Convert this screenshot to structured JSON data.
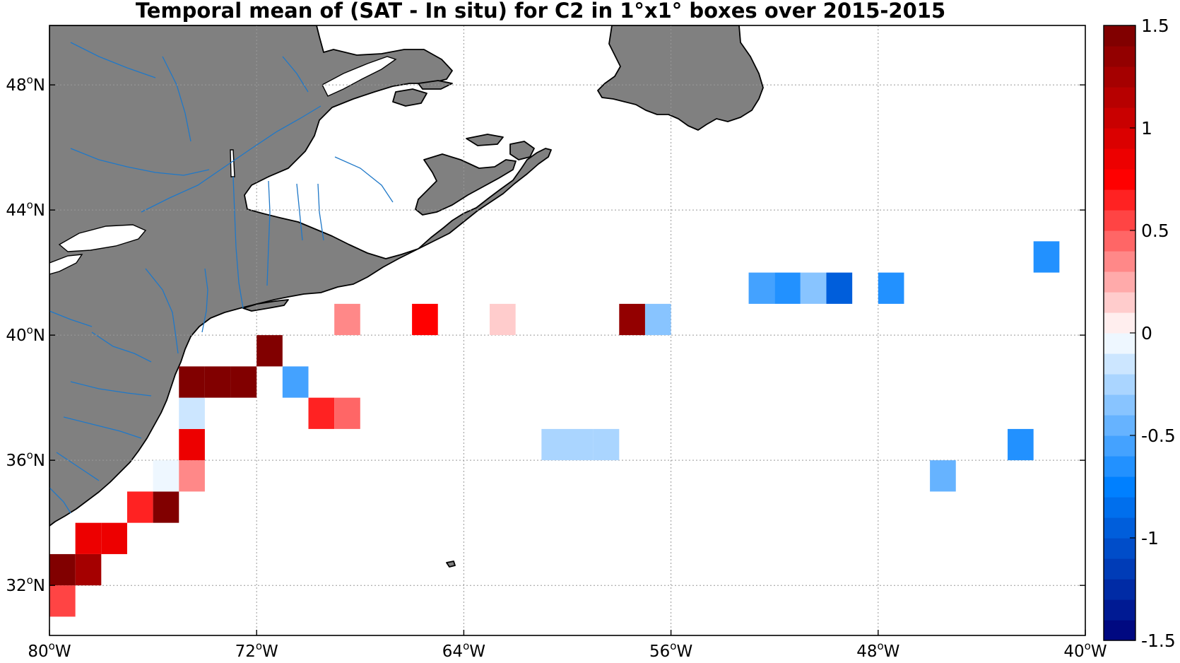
{
  "title": "Temporal mean of (SAT - In situ) for C2 in 1°x1° boxes over 2015-2015",
  "colors": {
    "land": "#808080",
    "coastline": "#000000",
    "rivers": "#1f78c8",
    "grid": "#999999"
  },
  "chart_data": {
    "type": "heatmap",
    "title": "Temporal mean of (SAT - In situ) for C2 in 1°x1° boxes over 2015-2015",
    "projection": "plate carree",
    "xlim": [
      -80,
      -40
    ],
    "ylim": [
      30.4,
      49.9
    ],
    "x_ticks": [
      {
        "value": -80,
        "label": "80",
        "hemi": "W"
      },
      {
        "value": -72,
        "label": "72",
        "hemi": "W"
      },
      {
        "value": -64,
        "label": "64",
        "hemi": "W"
      },
      {
        "value": -56,
        "label": "56",
        "hemi": "W"
      },
      {
        "value": -48,
        "label": "48",
        "hemi": "W"
      },
      {
        "value": -40,
        "label": "40",
        "hemi": "W"
      }
    ],
    "y_ticks": [
      {
        "value": 32,
        "label": "32",
        "hemi": "N"
      },
      {
        "value": 36,
        "label": "36",
        "hemi": "N"
      },
      {
        "value": 40,
        "label": "40",
        "hemi": "N"
      },
      {
        "value": 44,
        "label": "44",
        "hemi": "N"
      },
      {
        "value": 48,
        "label": "48",
        "hemi": "N"
      }
    ],
    "grid": true,
    "colorbar": {
      "range": [
        -1.5,
        1.5
      ],
      "levels": 30,
      "tick_values": [
        1.5,
        1,
        0.5,
        0,
        -0.5,
        -1,
        -1.5
      ],
      "tick_labels": [
        "1.5",
        "1",
        "0.5",
        "0",
        "-0.5",
        "-1",
        "-1.5"
      ],
      "colormap": "blue-white-red"
    },
    "cells": [
      {
        "lon": -80,
        "lat": 31,
        "value": 0.55
      },
      {
        "lon": -80,
        "lat": 32,
        "value": 1.45
      },
      {
        "lon": -79,
        "lat": 32,
        "value": 1.25
      },
      {
        "lon": -79,
        "lat": 33,
        "value": 0.9
      },
      {
        "lon": -78,
        "lat": 33,
        "value": 0.9
      },
      {
        "lon": -77,
        "lat": 34,
        "value": 0.6
      },
      {
        "lon": -76,
        "lat": 34,
        "value": 1.45
      },
      {
        "lon": -76,
        "lat": 35,
        "value": -0.05
      },
      {
        "lon": -75,
        "lat": 35,
        "value": 0.3
      },
      {
        "lon": -75,
        "lat": 36,
        "value": 0.9
      },
      {
        "lon": -75,
        "lat": 37,
        "value": -0.15
      },
      {
        "lon": -75,
        "lat": 38,
        "value": 1.45
      },
      {
        "lon": -74,
        "lat": 38,
        "value": 1.45
      },
      {
        "lon": -73,
        "lat": 38,
        "value": 1.45
      },
      {
        "lon": -72,
        "lat": 39,
        "value": 1.45
      },
      {
        "lon": -71,
        "lat": 38,
        "value": -0.55
      },
      {
        "lon": -70,
        "lat": 37,
        "value": 0.6
      },
      {
        "lon": -69,
        "lat": 37,
        "value": 0.45
      },
      {
        "lon": -69,
        "lat": 40,
        "value": 0.3
      },
      {
        "lon": -66,
        "lat": 40,
        "value": 0.75
      },
      {
        "lon": -63,
        "lat": 40,
        "value": 0.15
      },
      {
        "lon": -61,
        "lat": 36,
        "value": -0.25
      },
      {
        "lon": -60,
        "lat": 36,
        "value": -0.25
      },
      {
        "lon": -59,
        "lat": 36,
        "value": -0.25
      },
      {
        "lon": -58,
        "lat": 40,
        "value": 1.35
      },
      {
        "lon": -57,
        "lat": 40,
        "value": -0.4
      },
      {
        "lon": -53,
        "lat": 41,
        "value": -0.55
      },
      {
        "lon": -52,
        "lat": 41,
        "value": -0.65
      },
      {
        "lon": -51,
        "lat": 41,
        "value": -0.4
      },
      {
        "lon": -50,
        "lat": 41,
        "value": -0.95
      },
      {
        "lon": -48,
        "lat": 41,
        "value": -0.65
      },
      {
        "lon": -46,
        "lat": 35,
        "value": -0.45
      },
      {
        "lon": -43,
        "lat": 36,
        "value": -0.65
      },
      {
        "lon": -42,
        "lat": 42,
        "value": -0.65
      }
    ]
  }
}
